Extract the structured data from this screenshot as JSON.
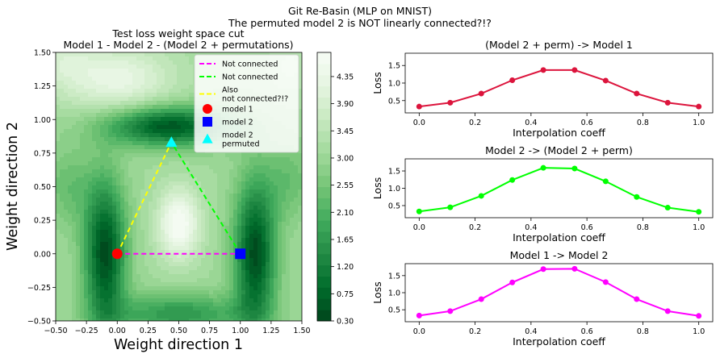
{
  "suptitle": [
    "Git Re-Basin (MLP on MNIST)",
    "The permuted model 2 is NOT linearly connected?!?"
  ],
  "chart_data": [
    {
      "type": "contour",
      "title": [
        "Test loss weight space cut",
        "Model 1 - Model 2 - (Model 2 + permutations)"
      ],
      "xlabel": "Weight direction 1",
      "ylabel": "Weight direction 2",
      "xlim": [
        -0.5,
        1.5
      ],
      "ylim": [
        -0.5,
        1.5
      ],
      "xticks": [
        "−0.50",
        "−0.25",
        "0.00",
        "0.25",
        "0.50",
        "0.75",
        "1.00",
        "1.25",
        "1.50"
      ],
      "yticks": [
        "−0.50",
        "−0.25",
        "0.00",
        "0.25",
        "0.50",
        "0.75",
        "1.00",
        "1.25",
        "1.50"
      ],
      "xtick_values": [
        -0.5,
        -0.25,
        0,
        0.25,
        0.5,
        0.75,
        1.0,
        1.25,
        1.5
      ],
      "ytick_values": [
        -0.5,
        -0.25,
        0,
        0.25,
        0.5,
        0.75,
        1.0,
        1.25,
        1.5
      ],
      "colormap": "Greens_r",
      "colorbar": {
        "vmin": 0.3,
        "vmax": 4.75,
        "ticks": [
          "0.30",
          "0.75",
          "1.20",
          "1.65",
          "2.10",
          "2.55",
          "3.00",
          "3.45",
          "3.90",
          "4.35"
        ],
        "tick_values": [
          0.3,
          0.75,
          1.2,
          1.65,
          2.1,
          2.55,
          3.0,
          3.45,
          3.9,
          4.35
        ]
      },
      "points": {
        "model1": {
          "x": 0.0,
          "y": 0.0,
          "color": "#ff0000",
          "marker": "circle"
        },
        "model2": {
          "x": 1.0,
          "y": 0.0,
          "color": "#0000ff",
          "marker": "square"
        },
        "model2_permuted": {
          "x": 0.44,
          "y": 0.83,
          "color": "#00ffff",
          "marker": "triangle"
        }
      },
      "lines": [
        {
          "from": "model1",
          "to": "model2",
          "color": "#ff00ff"
        },
        {
          "from": "model2",
          "to": "model2_permuted",
          "color": "#00ff00"
        },
        {
          "from": "model1",
          "to": "model2_permuted",
          "color": "#ffff00"
        }
      ],
      "legend": {
        "location": "upper right",
        "entries": [
          {
            "label": [
              "Not connected"
            ],
            "kind": "line",
            "color": "#ff00ff"
          },
          {
            "label": [
              "Not connected"
            ],
            "kind": "line",
            "color": "#00ff00"
          },
          {
            "label": [
              "Also",
              "not connected?!?"
            ],
            "kind": "line",
            "color": "#ffff00"
          },
          {
            "label": [
              "model 1"
            ],
            "kind": "circle",
            "color": "#ff0000"
          },
          {
            "label": [
              "model 2"
            ],
            "kind": "square",
            "color": "#0000ff"
          },
          {
            "label": [
              "model 2",
              "permuted"
            ],
            "kind": "triangle",
            "color": "#00ffff"
          }
        ]
      }
    },
    {
      "type": "line",
      "title": "(Model 2 + perm) -> Model 1",
      "xlabel": "Interpolation coeff",
      "ylabel": "Loss",
      "color": "#dc143c",
      "x": [
        0,
        0.111,
        0.222,
        0.333,
        0.444,
        0.556,
        0.667,
        0.778,
        0.889,
        1.0
      ],
      "y": [
        0.33,
        0.44,
        0.7,
        1.08,
        1.37,
        1.37,
        1.07,
        0.7,
        0.44,
        0.33
      ],
      "xlim": [
        -0.05,
        1.05
      ],
      "ylim": [
        0.15,
        1.85
      ],
      "xticks": [
        "0.0",
        "0.2",
        "0.4",
        "0.6",
        "0.8",
        "1.0"
      ],
      "xtick_values": [
        0,
        0.2,
        0.4,
        0.6,
        0.8,
        1.0
      ],
      "yticks": [
        "0.5",
        "1.0",
        "1.5"
      ],
      "ytick_values": [
        0.5,
        1.0,
        1.5
      ]
    },
    {
      "type": "line",
      "title": "Model 2 -> (Model 2 + perm)",
      "xlabel": "Interpolation coeff",
      "ylabel": "Loss",
      "color": "#00ff00",
      "x": [
        0,
        0.111,
        0.222,
        0.333,
        0.444,
        0.556,
        0.667,
        0.778,
        0.889,
        1.0
      ],
      "y": [
        0.33,
        0.45,
        0.78,
        1.24,
        1.59,
        1.57,
        1.2,
        0.75,
        0.44,
        0.32
      ],
      "xlim": [
        -0.05,
        1.05
      ],
      "ylim": [
        0.15,
        1.85
      ],
      "xticks": [
        "0.0",
        "0.2",
        "0.4",
        "0.6",
        "0.8",
        "1.0"
      ],
      "xtick_values": [
        0,
        0.2,
        0.4,
        0.6,
        0.8,
        1.0
      ],
      "yticks": [
        "0.5",
        "1.0",
        "1.5"
      ],
      "ytick_values": [
        0.5,
        1.0,
        1.5
      ]
    },
    {
      "type": "line",
      "title": "Model 1 -> Model 2",
      "xlabel": "Interpolation coeff",
      "ylabel": "Loss",
      "color": "#ff00ff",
      "x": [
        0,
        0.111,
        0.222,
        0.333,
        0.444,
        0.556,
        0.667,
        0.778,
        0.889,
        1.0
      ],
      "y": [
        0.33,
        0.46,
        0.81,
        1.3,
        1.69,
        1.7,
        1.31,
        0.81,
        0.46,
        0.32
      ],
      "xlim": [
        -0.05,
        1.05
      ],
      "ylim": [
        0.15,
        1.85
      ],
      "xticks": [
        "0.0",
        "0.2",
        "0.4",
        "0.6",
        "0.8",
        "1.0"
      ],
      "xtick_values": [
        0,
        0.2,
        0.4,
        0.6,
        0.8,
        1.0
      ],
      "yticks": [
        "0.5",
        "1.0",
        "1.5"
      ],
      "ytick_values": [
        0.5,
        1.0,
        1.5
      ]
    }
  ]
}
